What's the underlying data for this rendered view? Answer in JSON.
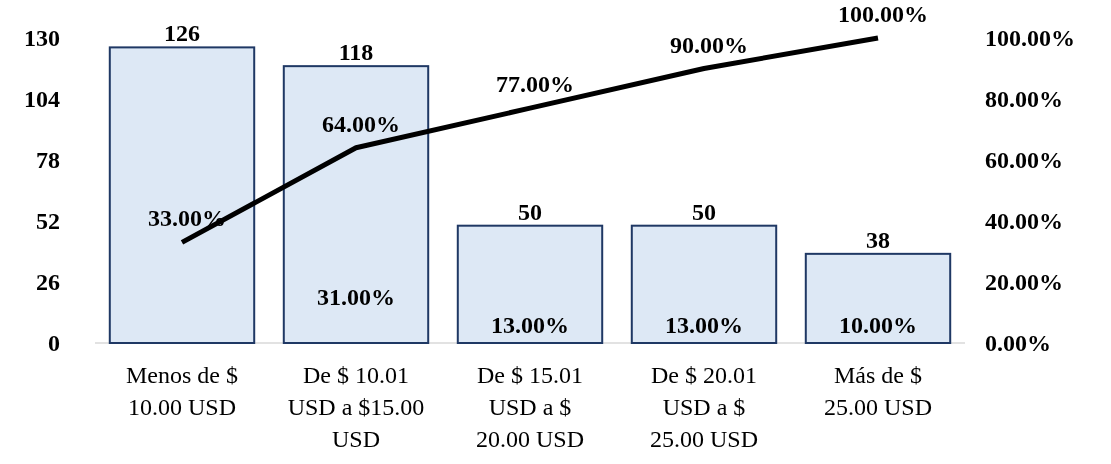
{
  "chart_data": {
    "type": "bar",
    "categories": [
      "Menos de $ 10.00 USD",
      "De $ 10.01 USD a $15.00 USD",
      "De $ 15.01 USD a $ 20.00 USD",
      "De $ 20.01 USD a $ 25.00 USD",
      "Más de $ 25.00 USD"
    ],
    "series": [
      {
        "color": "#dde8f5",
        "values": [
          126,
          118,
          50,
          50,
          38
        ],
        "value_labels": [
          "126",
          "118",
          "50",
          "50",
          "38"
        ]
      },
      {
        "type": "line",
        "axis": "y2",
        "color": "#000000",
        "values": [
          33,
          64,
          77,
          90,
          100
        ],
        "value_labels": [
          "33.00%",
          "64.00%",
          "77.00%",
          "90.00%",
          "100.00%"
        ]
      }
    ],
    "ylim": [
      0,
      130
    ],
    "yticks": [
      0,
      26,
      52,
      78,
      104,
      130
    ],
    "y2lim": [
      0,
      100
    ],
    "y2ticks": [
      {
        "value": 0,
        "label": "0.00%"
      },
      {
        "value": 20,
        "label": "20.00%"
      },
      {
        "value": 40,
        "label": "40.00%"
      },
      {
        "value": 60,
        "label": "60.00%"
      },
      {
        "value": 80,
        "label": "80.00%"
      },
      {
        "value": 100,
        "label": "100.00%"
      }
    ],
    "annotations": [
      "31.00%",
      "13.00%",
      "13.00%",
      "10.00%"
    ],
    "grid": false
  }
}
